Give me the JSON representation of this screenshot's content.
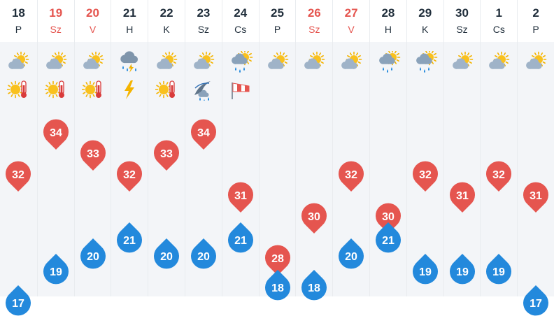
{
  "forecast": {
    "colors": {
      "max_marker": "#e5554f",
      "min_marker": "#2389dc",
      "weekend_text": "#e5554f",
      "weekday_text": "#1f2d3a",
      "column_bg": "#f3f5f8",
      "header_bg": "#ffffff"
    },
    "days": [
      {
        "date": "18",
        "name": "P",
        "weekend": false,
        "weather": "sun-cloud-icon",
        "warnings": [
          "heat-warning-icon"
        ],
        "max": "32",
        "min": "17"
      },
      {
        "date": "19",
        "name": "Sz",
        "weekend": true,
        "weather": "sun-cloud-icon",
        "warnings": [
          "heat-warning-icon"
        ],
        "max": "34",
        "min": "19"
      },
      {
        "date": "20",
        "name": "V",
        "weekend": true,
        "weather": "sun-cloud-icon",
        "warnings": [
          "heat-warning-icon"
        ],
        "max": "33",
        "min": "20"
      },
      {
        "date": "21",
        "name": "H",
        "weekend": false,
        "weather": "thunder-rain-icon",
        "warnings": [
          "lightning-warning-icon"
        ],
        "max": "32",
        "min": "21"
      },
      {
        "date": "22",
        "name": "K",
        "weekend": false,
        "weather": "sun-cloud-icon",
        "warnings": [
          "heat-warning-icon"
        ],
        "max": "33",
        "min": "20"
      },
      {
        "date": "23",
        "name": "Sz",
        "weekend": false,
        "weather": "sun-cloud-icon",
        "warnings": [
          "storm-warning-icon"
        ],
        "max": "34",
        "min": "20"
      },
      {
        "date": "24",
        "name": "Cs",
        "weekend": false,
        "weather": "sun-rain-icon",
        "warnings": [
          "wind-warning-icon"
        ],
        "max": "31",
        "min": "21"
      },
      {
        "date": "25",
        "name": "P",
        "weekend": false,
        "weather": "sun-cloud-icon",
        "warnings": [],
        "max": "28",
        "min": "18"
      },
      {
        "date": "26",
        "name": "Sz",
        "weekend": true,
        "weather": "sun-cloud-icon",
        "warnings": [],
        "max": "30",
        "min": "18"
      },
      {
        "date": "27",
        "name": "V",
        "weekend": true,
        "weather": "sun-cloud-icon",
        "warnings": [],
        "max": "32",
        "min": "20"
      },
      {
        "date": "28",
        "name": "H",
        "weekend": false,
        "weather": "sun-rain-icon",
        "warnings": [],
        "max": "30",
        "min": "21"
      },
      {
        "date": "29",
        "name": "K",
        "weekend": false,
        "weather": "sun-rain-icon",
        "warnings": [],
        "max": "32",
        "min": "19"
      },
      {
        "date": "30",
        "name": "Sz",
        "weekend": false,
        "weather": "sun-cloud-icon",
        "warnings": [],
        "max": "31",
        "min": "19"
      },
      {
        "date": "1",
        "name": "Cs",
        "weekend": false,
        "weather": "sun-cloud-icon",
        "warnings": [],
        "max": "32",
        "min": "19"
      },
      {
        "date": "2",
        "name": "P",
        "weekend": false,
        "weather": "sun-cloud-icon",
        "warnings": [],
        "max": "31",
        "min": "17"
      }
    ]
  }
}
